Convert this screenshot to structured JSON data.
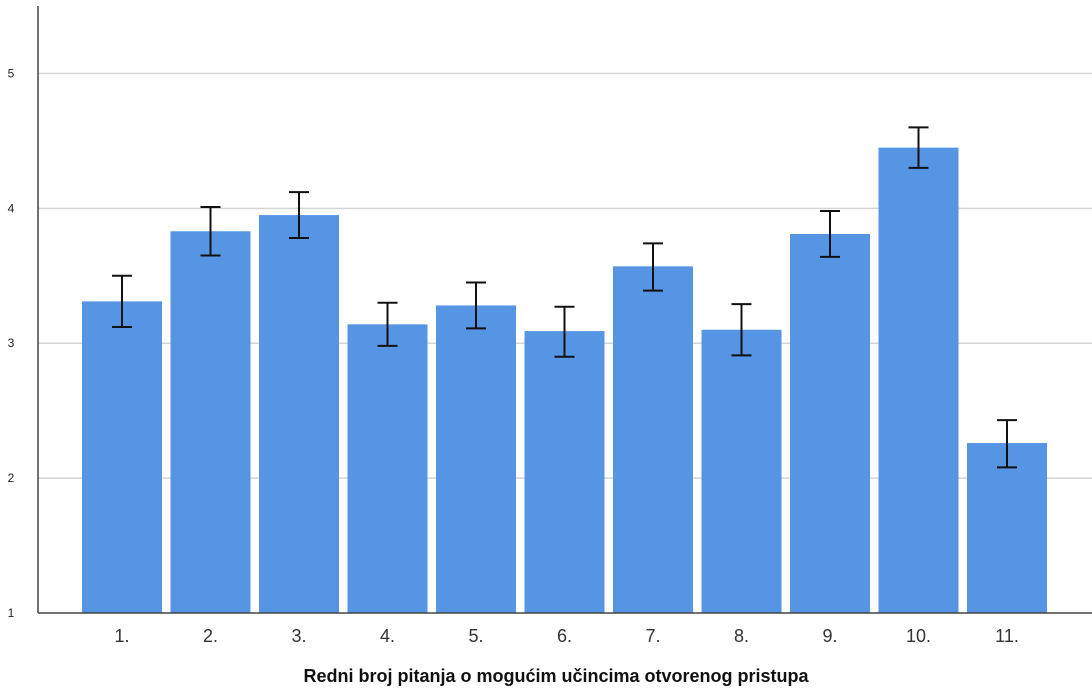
{
  "chart_data": {
    "type": "bar",
    "title": "",
    "xlabel": "Redni broj pitanja o mogućim učincima otvorenog pristupa",
    "ylabel": "",
    "categories": [
      "1.",
      "2.",
      "3.",
      "4.",
      "5.",
      "6.",
      "7.",
      "8.",
      "9.",
      "10.",
      "11."
    ],
    "values": [
      3.31,
      3.83,
      3.95,
      3.14,
      3.28,
      3.09,
      3.57,
      3.1,
      3.81,
      4.45,
      2.26
    ],
    "error_low": [
      3.12,
      3.65,
      3.78,
      2.98,
      3.11,
      2.9,
      3.39,
      2.91,
      3.64,
      4.3,
      2.08
    ],
    "error_high": [
      3.5,
      4.01,
      4.12,
      3.3,
      3.45,
      3.27,
      3.74,
      3.29,
      3.98,
      4.6,
      2.43
    ],
    "ylim": [
      1,
      5.5
    ],
    "yticks": [
      1,
      2,
      3,
      4,
      5
    ],
    "grid": true,
    "colors": {
      "bar": "#5694e4",
      "grid": "#d4d4d4",
      "axis": "#444444",
      "error": "#111111"
    }
  }
}
